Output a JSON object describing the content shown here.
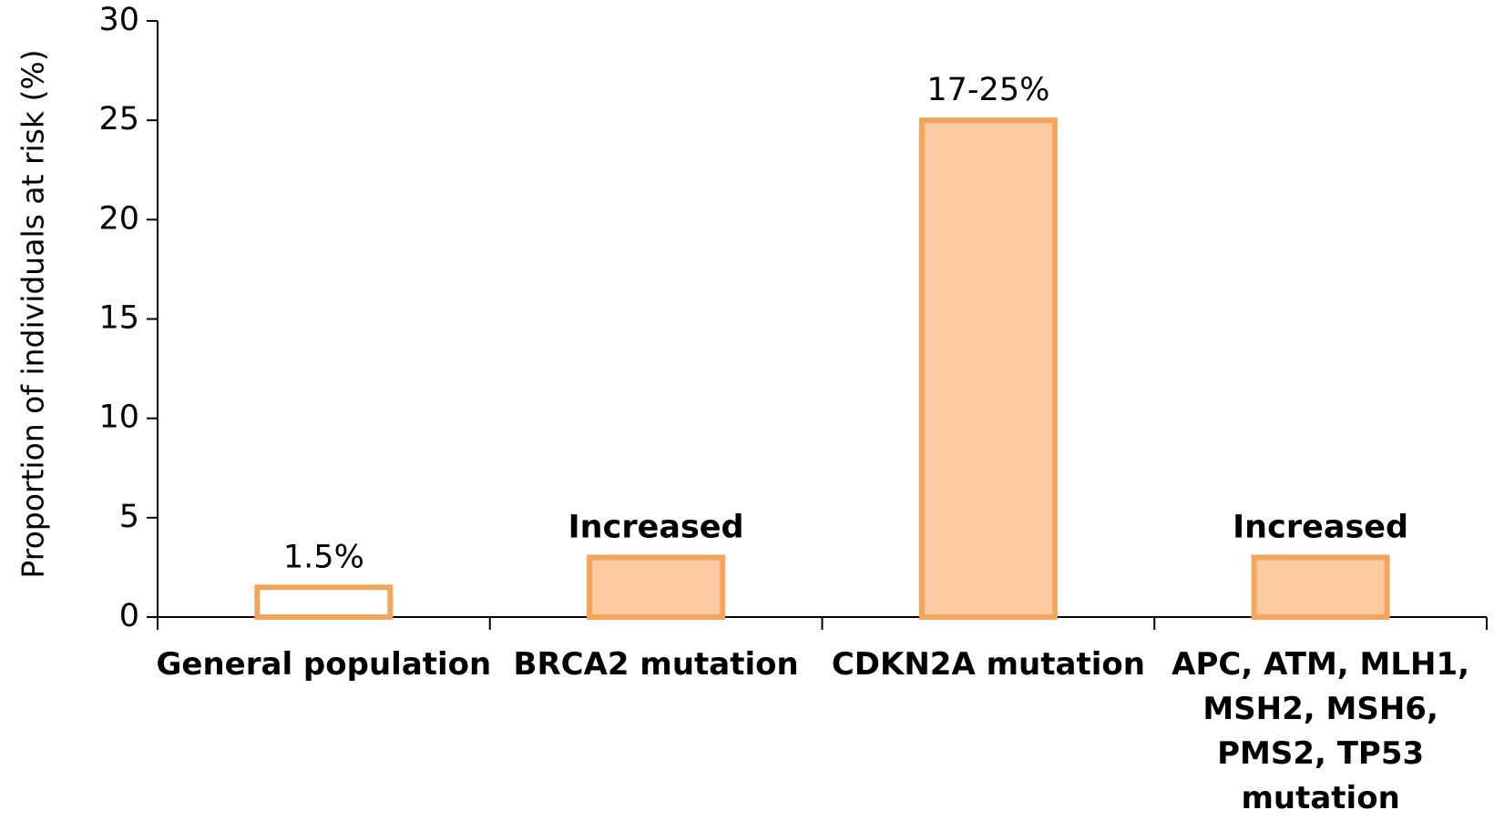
{
  "chart_data": {
    "type": "bar",
    "y_axis_label": "Proportion of individuals at risk (%)",
    "categories": [
      "General population",
      "BRCA2 mutation",
      "CDKN2A mutation",
      "APC, ATM, MLH1,\nMSH2, MSH6,\nPMS2, TP53\nmutation"
    ],
    "values": [
      1.5,
      3,
      25,
      3
    ],
    "value_labels": [
      "1.5%",
      "Increased",
      "17-25%",
      "Increased"
    ],
    "value_label_bold": [
      false,
      true,
      false,
      true
    ],
    "colors": [
      "#ffffff",
      "#fbcaa1",
      "#fbcaa1",
      "#fbcaa1"
    ],
    "edge_color": "#f5a55b",
    "ylim": [
      0,
      30
    ],
    "yticks": [
      0,
      5,
      10,
      15,
      20,
      25,
      30
    ],
    "grid": false
  }
}
